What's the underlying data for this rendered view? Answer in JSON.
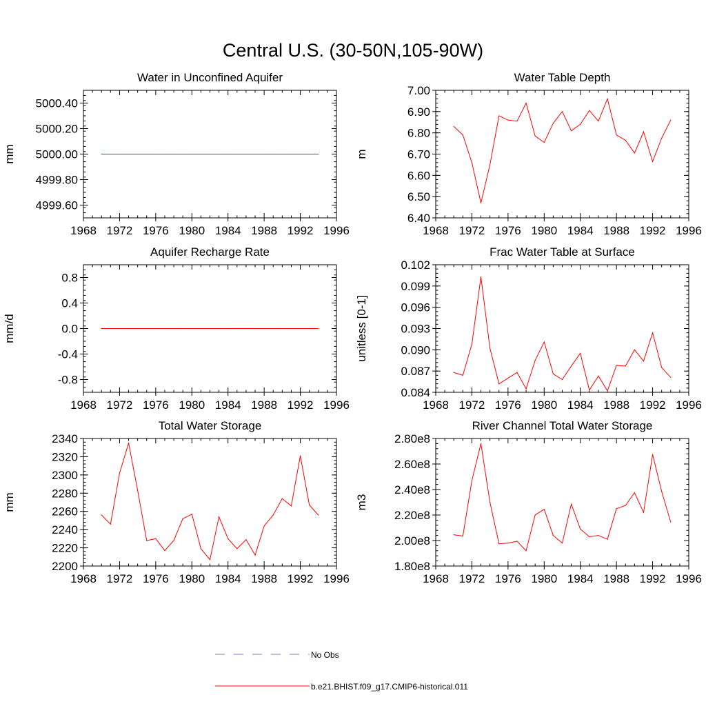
{
  "title": "Central U.S. (30-50N,105-90W)",
  "colors": {
    "model": "#ff0000",
    "obs": "#7f7fcc",
    "axis": "#000000"
  },
  "legend": {
    "obs_label": "No Obs",
    "model_label": "b.e21.BHIST.f09_g17.CMIP6-historical.011"
  },
  "chart_data": [
    {
      "type": "line",
      "title": "Water in Unconfined Aquifer",
      "ylabel": "mm",
      "xlim": [
        1968,
        1996
      ],
      "ylim": [
        4999.5,
        5000.5
      ],
      "xticks": [
        1968,
        1972,
        1976,
        1980,
        1984,
        1988,
        1992,
        1996
      ],
      "yticks": [
        4999.6,
        4999.8,
        5000.0,
        5000.2,
        5000.4
      ],
      "ytick_labels": [
        "4999.60",
        "4999.80",
        "5000.00",
        "5000.20",
        "5000.40"
      ],
      "x": [
        1970,
        1971,
        1972,
        1973,
        1974,
        1975,
        1976,
        1977,
        1978,
        1979,
        1980,
        1981,
        1982,
        1983,
        1984,
        1985,
        1986,
        1987,
        1988,
        1989,
        1990,
        1991,
        1992,
        1993,
        1994
      ],
      "series": [
        {
          "name": "b.e21.BHIST.f09_g17.CMIP6-historical.011",
          "values": [
            5000,
            5000,
            5000,
            5000,
            5000,
            5000,
            5000,
            5000,
            5000,
            5000,
            5000,
            5000,
            5000,
            5000,
            5000,
            5000,
            5000,
            5000,
            5000,
            5000,
            5000,
            5000,
            5000,
            5000,
            5000
          ]
        }
      ]
    },
    {
      "type": "line",
      "title": "Water Table Depth",
      "ylabel": "m",
      "xlim": [
        1968,
        1996
      ],
      "ylim": [
        6.4,
        7.0
      ],
      "xticks": [
        1968,
        1972,
        1976,
        1980,
        1984,
        1988,
        1992,
        1996
      ],
      "yticks": [
        6.4,
        6.5,
        6.6,
        6.7,
        6.8,
        6.9,
        7.0
      ],
      "ytick_labels": [
        "6.40",
        "6.50",
        "6.60",
        "6.70",
        "6.80",
        "6.90",
        "7.00"
      ],
      "x": [
        1970,
        1971,
        1972,
        1973,
        1974,
        1975,
        1976,
        1977,
        1978,
        1979,
        1980,
        1981,
        1982,
        1983,
        1984,
        1985,
        1986,
        1987,
        1988,
        1989,
        1990,
        1991,
        1992,
        1993,
        1994
      ],
      "series": [
        {
          "name": "b.e21.BHIST.f09_g17.CMIP6-historical.011",
          "values": [
            6.83,
            6.79,
            6.66,
            6.47,
            6.65,
            6.88,
            6.86,
            6.855,
            6.94,
            6.785,
            6.755,
            6.845,
            6.9,
            6.81,
            6.84,
            6.905,
            6.855,
            6.96,
            6.79,
            6.765,
            6.705,
            6.805,
            6.665,
            6.775,
            6.86
          ]
        }
      ]
    },
    {
      "type": "line",
      "title": "Aquifer Recharge Rate",
      "ylabel": "mm/d",
      "xlim": [
        1968,
        1996
      ],
      "ylim": [
        -1.0,
        1.0
      ],
      "xticks": [
        1968,
        1972,
        1976,
        1980,
        1984,
        1988,
        1992,
        1996
      ],
      "yticks": [
        -0.8,
        -0.4,
        0.0,
        0.4,
        0.8
      ],
      "ytick_labels": [
        "-0.8",
        "-0.4",
        "0.0",
        "0.4",
        "0.8"
      ],
      "x": [
        1970,
        1971,
        1972,
        1973,
        1974,
        1975,
        1976,
        1977,
        1978,
        1979,
        1980,
        1981,
        1982,
        1983,
        1984,
        1985,
        1986,
        1987,
        1988,
        1989,
        1990,
        1991,
        1992,
        1993,
        1994
      ],
      "series": [
        {
          "name": "b.e21.BHIST.f09_g17.CMIP6-historical.011",
          "values": [
            0,
            0,
            0,
            0,
            0,
            0,
            0,
            0,
            0,
            0,
            0,
            0,
            0,
            0,
            0,
            0,
            0,
            0,
            0,
            0,
            0,
            0,
            0,
            0,
            0
          ]
        }
      ]
    },
    {
      "type": "line",
      "title": "Frac Water Table at Surface",
      "ylabel": "unitless [0-1]",
      "xlim": [
        1968,
        1996
      ],
      "ylim": [
        0.084,
        0.102
      ],
      "xticks": [
        1968,
        1972,
        1976,
        1980,
        1984,
        1988,
        1992,
        1996
      ],
      "yticks": [
        0.084,
        0.087,
        0.09,
        0.093,
        0.096,
        0.099,
        0.102
      ],
      "ytick_labels": [
        "0.084",
        "0.087",
        "0.090",
        "0.093",
        "0.096",
        "0.099",
        "0.102"
      ],
      "x": [
        1970,
        1971,
        1972,
        1973,
        1974,
        1975,
        1976,
        1977,
        1978,
        1979,
        1980,
        1981,
        1982,
        1983,
        1984,
        1985,
        1986,
        1987,
        1988,
        1989,
        1990,
        1991,
        1992,
        1993,
        1994
      ],
      "series": [
        {
          "name": "b.e21.BHIST.f09_g17.CMIP6-historical.011",
          "values": [
            0.0868,
            0.0864,
            0.0908,
            0.1003,
            0.0902,
            0.0852,
            0.086,
            0.0868,
            0.0845,
            0.0885,
            0.0911,
            0.0866,
            0.0858,
            0.0877,
            0.0895,
            0.0843,
            0.0863,
            0.0842,
            0.0878,
            0.0877,
            0.09,
            0.0884,
            0.0924,
            0.0875,
            0.0861
          ]
        }
      ]
    },
    {
      "type": "line",
      "title": "Total Water Storage",
      "ylabel": "mm",
      "xlim": [
        1968,
        1996
      ],
      "ylim": [
        2200,
        2340
      ],
      "xticks": [
        1968,
        1972,
        1976,
        1980,
        1984,
        1988,
        1992,
        1996
      ],
      "yticks": [
        2200,
        2220,
        2240,
        2260,
        2280,
        2300,
        2320,
        2340
      ],
      "ytick_labels": [
        "2200",
        "2220",
        "2240",
        "2260",
        "2280",
        "2300",
        "2320",
        "2340"
      ],
      "x": [
        1970,
        1971,
        1972,
        1973,
        1974,
        1975,
        1976,
        1977,
        1978,
        1979,
        1980,
        1981,
        1982,
        1983,
        1984,
        1985,
        1986,
        1987,
        1988,
        1989,
        1990,
        1991,
        1992,
        1993,
        1994
      ],
      "series": [
        {
          "name": "b.e21.BHIST.f09_g17.CMIP6-historical.011",
          "values": [
            2256,
            2246,
            2302,
            2335,
            2283,
            2228,
            2230,
            2217,
            2228,
            2252,
            2257,
            2219,
            2207,
            2254,
            2230,
            2219,
            2229,
            2212,
            2244,
            2256,
            2274,
            2266,
            2321,
            2267,
            2256
          ]
        }
      ]
    },
    {
      "type": "line",
      "title": "River Channel Total Water Storage",
      "ylabel": "m3",
      "xlim": [
        1968,
        1996
      ],
      "ylim": [
        180000000,
        280000000
      ],
      "xticks": [
        1968,
        1972,
        1976,
        1980,
        1984,
        1988,
        1992,
        1996
      ],
      "yticks": [
        180000000,
        200000000,
        220000000,
        240000000,
        260000000,
        280000000
      ],
      "ytick_labels": [
        "1.80e8",
        "2.00e8",
        "2.20e8",
        "2.40e8",
        "2.60e8",
        "2.80e8"
      ],
      "x": [
        1970,
        1971,
        1972,
        1973,
        1974,
        1975,
        1976,
        1977,
        1978,
        1979,
        1980,
        1981,
        1982,
        1983,
        1984,
        1985,
        1986,
        1987,
        1988,
        1989,
        1990,
        1991,
        1992,
        1993,
        1994
      ],
      "series": [
        {
          "name": "b.e21.BHIST.f09_g17.CMIP6-historical.011",
          "values": [
            204500000,
            203500000,
            247000000,
            276000000,
            230000000,
            197500000,
            198000000,
            199500000,
            192000000,
            220000000,
            224500000,
            204000000,
            198000000,
            228500000,
            209000000,
            203000000,
            204000000,
            201000000,
            225000000,
            227500000,
            237500000,
            222000000,
            267500000,
            238500000,
            214500000
          ]
        }
      ]
    }
  ]
}
